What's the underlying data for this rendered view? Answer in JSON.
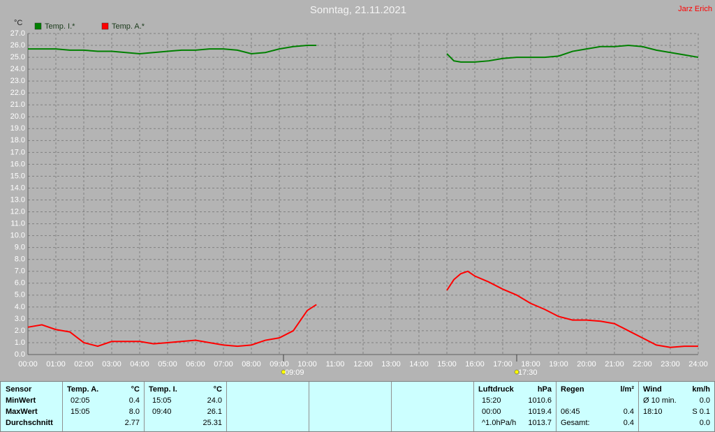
{
  "chart_data": {
    "type": "line",
    "title": "Sonntag, 21.11.2021",
    "author": "Jarz Erich",
    "y_label": "°C",
    "x": [
      0,
      0.5,
      1,
      1.5,
      2,
      2.5,
      3,
      3.5,
      4,
      4.5,
      5,
      5.5,
      6,
      6.5,
      7,
      7.5,
      8,
      8.5,
      9,
      9.5,
      10,
      10.33,
      12.5,
      15,
      15.25,
      15.5,
      15.75,
      16,
      16.5,
      17,
      17.5,
      18,
      18.5,
      19,
      19.5,
      20,
      20.5,
      21,
      21.5,
      22,
      22.5,
      23,
      23.5,
      24
    ],
    "series": [
      {
        "name": "Temp. I.*",
        "color": "#008000",
        "values": [
          25.7,
          25.7,
          25.7,
          25.6,
          25.6,
          25.5,
          25.5,
          25.4,
          25.3,
          25.4,
          25.5,
          25.6,
          25.6,
          25.7,
          25.7,
          25.6,
          25.3,
          25.4,
          25.7,
          25.9,
          26.0,
          26.0,
          null,
          25.3,
          24.7,
          24.6,
          24.6,
          24.6,
          24.7,
          24.9,
          25.0,
          25.0,
          25.0,
          25.1,
          25.5,
          25.7,
          25.9,
          25.9,
          26.0,
          25.9,
          25.6,
          25.4,
          25.2,
          25.0
        ]
      },
      {
        "name": "Temp. A.*",
        "color": "#ff0000",
        "values": [
          2.3,
          2.5,
          2.1,
          1.9,
          1.0,
          0.7,
          1.1,
          1.1,
          1.1,
          0.9,
          1.0,
          1.1,
          1.2,
          1.0,
          0.8,
          0.7,
          0.8,
          1.2,
          1.4,
          2.0,
          3.7,
          4.2,
          null,
          5.4,
          6.3,
          6.8,
          7.0,
          6.6,
          6.1,
          5.5,
          5.0,
          4.3,
          3.8,
          3.2,
          2.9,
          2.9,
          2.8,
          2.6,
          2.0,
          1.4,
          0.8,
          0.6,
          0.7,
          0.7
        ]
      }
    ],
    "xlim": [
      0,
      24
    ],
    "xticks": [
      {
        "value": 0,
        "label": "00:00"
      },
      {
        "value": 1,
        "label": "01:00"
      },
      {
        "value": 2,
        "label": "02:00"
      },
      {
        "value": 3,
        "label": "03:00"
      },
      {
        "value": 4,
        "label": "04:00"
      },
      {
        "value": 5,
        "label": "05:00"
      },
      {
        "value": 6,
        "label": "06:00"
      },
      {
        "value": 7,
        "label": "07:00"
      },
      {
        "value": 8,
        "label": "08:00"
      },
      {
        "value": 9,
        "label": "09:00"
      },
      {
        "value": 10,
        "label": "10:00"
      },
      {
        "value": 11,
        "label": "11:00"
      },
      {
        "value": 12,
        "label": "12:00"
      },
      {
        "value": 13,
        "label": "13:00"
      },
      {
        "value": 14,
        "label": "14:00"
      },
      {
        "value": 15,
        "label": "15:00"
      },
      {
        "value": 16,
        "label": "16:00"
      },
      {
        "value": 17,
        "label": "17:00"
      },
      {
        "value": 18,
        "label": "18:00"
      },
      {
        "value": 19,
        "label": "19:00"
      },
      {
        "value": 20,
        "label": "20:00"
      },
      {
        "value": 21,
        "label": "21:00"
      },
      {
        "value": 22,
        "label": "22:00"
      },
      {
        "value": 23,
        "label": "23:00"
      },
      {
        "value": 24,
        "label": "24:00"
      }
    ],
    "ylim": [
      0,
      27
    ],
    "yticks": [
      {
        "value": 0,
        "label": "0.0"
      },
      {
        "value": 1,
        "label": "1.0"
      },
      {
        "value": 2,
        "label": "2.0"
      },
      {
        "value": 3,
        "label": "3.0"
      },
      {
        "value": 4,
        "label": "4.0"
      },
      {
        "value": 5,
        "label": "5.0"
      },
      {
        "value": 6,
        "label": "6.0"
      },
      {
        "value": 7,
        "label": "7.0"
      },
      {
        "value": 8,
        "label": "8.0"
      },
      {
        "value": 9,
        "label": "9.0"
      },
      {
        "value": 10,
        "label": "10.0"
      },
      {
        "value": 11,
        "label": "11.0"
      },
      {
        "value": 12,
        "label": "12.0"
      },
      {
        "value": 13,
        "label": "13.0"
      },
      {
        "value": 14,
        "label": "14.0"
      },
      {
        "value": 15,
        "label": "15.0"
      },
      {
        "value": 16,
        "label": "16.0"
      },
      {
        "value": 17,
        "label": "17.0"
      },
      {
        "value": 18,
        "label": "18.0"
      },
      {
        "value": 19,
        "label": "19.0"
      },
      {
        "value": 20,
        "label": "20.0"
      },
      {
        "value": 21,
        "label": "21.0"
      },
      {
        "value": 22,
        "label": "22.0"
      },
      {
        "value": 23,
        "label": "23.0"
      },
      {
        "value": 24,
        "label": "24.0"
      },
      {
        "value": 25,
        "label": "25.0"
      },
      {
        "value": 26,
        "label": "26.0"
      },
      {
        "value": 27,
        "label": "27.0"
      }
    ],
    "grid": true,
    "annotations": [
      {
        "x": 9.15,
        "label": "09:09"
      },
      {
        "x": 17.5,
        "label": "17:30"
      }
    ]
  },
  "table": {
    "header": "Sensor",
    "row_labels": [
      "MinWert",
      "MaxWert",
      "Durchschnitt"
    ],
    "groups": [
      {
        "title": "Temp. A.",
        "unit": "°C",
        "rows": [
          {
            "time": "02:05",
            "value": "0.4"
          },
          {
            "time": "15:05",
            "value": "8.0"
          },
          {
            "value": "2.77"
          }
        ]
      },
      {
        "title": "Temp. I.",
        "unit": "°C",
        "rows": [
          {
            "time": "15:05",
            "value": "24.0"
          },
          {
            "time": "09:40",
            "value": "26.1"
          },
          {
            "value": "25.31"
          }
        ]
      },
      {
        "title": "Luftdruck",
        "unit": "hPa",
        "rows": [
          {
            "time": "15:20",
            "value": "1010.6"
          },
          {
            "time": "00:00",
            "value": "1019.4"
          },
          {
            "time": "^1.0hPa/h",
            "value": "1013.7"
          }
        ]
      },
      {
        "title": "Regen",
        "unit": "l/m²",
        "rows": [
          {},
          {
            "time": "06:45",
            "value": "0.4"
          },
          {
            "time": "Gesamt:",
            "value": "0.4"
          }
        ]
      },
      {
        "title": "Wind",
        "unit": "km/h",
        "rows": [
          {
            "time": "Ø 10 min.",
            "value": "0.0"
          },
          {
            "time": "18:10",
            "value": "S 0.1"
          },
          {
            "value": "0.0"
          }
        ]
      }
    ]
  }
}
